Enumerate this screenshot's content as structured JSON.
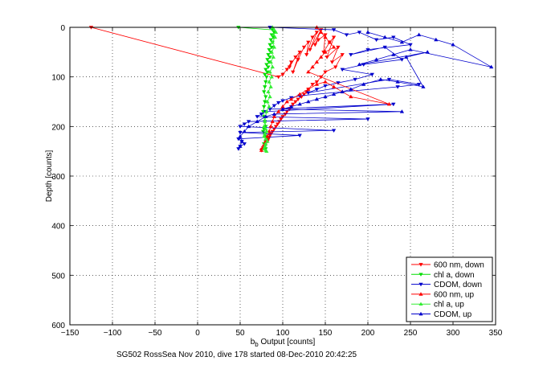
{
  "chart_data": {
    "type": "scatter",
    "title": "",
    "xlabel_base": "b",
    "xlabel_sub": "b",
    "xlabel_rest": " Output [counts]",
    "ylabel": "Depth [counts]",
    "caption": "SG502 RossSea Nov 2010, dive 178 started 08-Dec-2010 20:42:25",
    "xlim": [
      -150,
      350
    ],
    "ylim": [
      600,
      0
    ],
    "grid": true,
    "legend_position": "bottom-right",
    "x_ticks": [
      -150,
      -100,
      -50,
      0,
      50,
      100,
      150,
      200,
      250,
      300,
      350
    ],
    "x_tick_labels": [
      "−150",
      "−100",
      "−50",
      "0",
      "50",
      "100",
      "150",
      "200",
      "250",
      "300",
      "350"
    ],
    "y_ticks": [
      0,
      100,
      200,
      300,
      400,
      500,
      600
    ],
    "y_tick_labels": [
      "0",
      "100",
      "200",
      "300",
      "400",
      "500",
      "600"
    ],
    "series": [
      {
        "name": "600 nm, down",
        "color": "#ff0000",
        "marker": "triangle-down",
        "x": [
          -125,
          95,
          100,
          105,
          110,
          108,
          115,
          120,
          112,
          118,
          125,
          130,
          128,
          135,
          140,
          132,
          145,
          138,
          142,
          150,
          148,
          155,
          160,
          152,
          165,
          158,
          170,
          162,
          150,
          145,
          140,
          135,
          130,
          128,
          125,
          122,
          118,
          115,
          112,
          110,
          108,
          105,
          103,
          100,
          98,
          96,
          94,
          92,
          90,
          88,
          86,
          85,
          84,
          83,
          82,
          80,
          79,
          78,
          77,
          76,
          75
        ],
        "y": [
          0,
          100,
          95,
          85,
          70,
          80,
          60,
          50,
          90,
          65,
          40,
          30,
          55,
          20,
          10,
          45,
          5,
          35,
          25,
          15,
          50,
          30,
          20,
          60,
          40,
          70,
          55,
          80,
          90,
          100,
          110,
          115,
          125,
          130,
          135,
          140,
          145,
          150,
          155,
          160,
          165,
          170,
          175,
          180,
          185,
          190,
          195,
          200,
          205,
          210,
          215,
          218,
          222,
          226,
          230,
          233,
          236,
          240,
          243,
          246,
          248
        ]
      },
      {
        "name": "chl a, down",
        "color": "#00dd00",
        "marker": "triangle-down",
        "x": [
          48,
          88,
          90,
          87,
          89,
          86,
          88,
          85,
          87,
          84,
          86,
          83,
          85,
          82,
          84,
          81,
          83,
          80,
          82,
          79,
          81,
          80,
          79,
          78,
          80,
          79,
          78,
          77,
          78,
          79,
          80,
          78,
          77,
          79,
          80,
          81,
          80,
          78,
          79,
          80
        ],
        "y": [
          0,
          5,
          10,
          15,
          20,
          25,
          30,
          35,
          40,
          45,
          50,
          55,
          60,
          65,
          70,
          75,
          80,
          85,
          90,
          95,
          100,
          110,
          120,
          130,
          140,
          150,
          160,
          170,
          180,
          190,
          200,
          205,
          210,
          215,
          220,
          225,
          230,
          235,
          240,
          245
        ]
      },
      {
        "name": "CDOM, down",
        "color": "#0000cc",
        "marker": "triangle-down",
        "x": [
          85,
          160,
          175,
          190,
          210,
          230,
          250,
          200,
          180,
          220,
          240,
          195,
          170,
          205,
          185,
          165,
          150,
          140,
          130,
          225,
          260,
          235,
          120,
          110,
          100,
          95,
          90,
          85,
          230,
          80,
          75,
          70,
          200,
          60,
          55,
          50,
          160,
          50,
          120,
          48,
          52,
          55,
          50,
          48
        ],
        "y": [
          0,
          5,
          15,
          10,
          25,
          20,
          35,
          45,
          55,
          40,
          65,
          75,
          85,
          95,
          105,
          112,
          118,
          125,
          132,
          105,
          115,
          120,
          138,
          142,
          148,
          152,
          158,
          165,
          155,
          170,
          175,
          180,
          185,
          190,
          195,
          200,
          208,
          212,
          218,
          225,
          230,
          235,
          240,
          245
        ]
      },
      {
        "name": "600 nm, up",
        "color": "#ff0000",
        "marker": "triangle-up",
        "x": [
          140,
          145,
          150,
          155,
          160,
          150,
          145,
          140,
          135,
          130,
          225,
          180,
          170,
          160,
          150,
          140,
          130,
          120,
          110,
          105,
          100,
          95,
          90,
          88,
          86,
          84,
          82,
          80,
          78,
          76,
          75
        ],
        "y": [
          0,
          10,
          20,
          30,
          40,
          50,
          60,
          70,
          80,
          90,
          155,
          140,
          130,
          120,
          110,
          115,
          125,
          135,
          145,
          150,
          160,
          170,
          180,
          190,
          200,
          210,
          220,
          230,
          238,
          244,
          248
        ]
      },
      {
        "name": "chl a, up",
        "color": "#33ee33",
        "marker": "triangle-up",
        "x": [
          88,
          90,
          92,
          89,
          91,
          88,
          90,
          87,
          89,
          86,
          88,
          85,
          87,
          84,
          86,
          83,
          85,
          82,
          84,
          81,
          80,
          79,
          78,
          80,
          81,
          79,
          78,
          80,
          82,
          80,
          79,
          78,
          80,
          81
        ],
        "y": [
          0,
          5,
          10,
          15,
          20,
          30,
          40,
          50,
          60,
          70,
          80,
          90,
          100,
          110,
          120,
          130,
          140,
          150,
          160,
          170,
          180,
          190,
          200,
          205,
          210,
          215,
          220,
          225,
          230,
          235,
          240,
          245,
          248,
          250
        ]
      },
      {
        "name": "CDOM, up",
        "color": "#0000cc",
        "marker": "triangle-up",
        "x": [
          200,
          220,
          240,
          260,
          280,
          300,
          345,
          250,
          230,
          210,
          190,
          270,
          245,
          265,
          235,
          215,
          195,
          180,
          170,
          160,
          150,
          140,
          130,
          120,
          110,
          100,
          240,
          90,
          80,
          70,
          60,
          55,
          50,
          52,
          50
        ],
        "y": [
          10,
          20,
          30,
          15,
          25,
          35,
          80,
          45,
          55,
          65,
          75,
          50,
          60,
          120,
          110,
          105,
          115,
          125,
          130,
          135,
          140,
          145,
          150,
          155,
          160,
          165,
          170,
          175,
          180,
          190,
          200,
          210,
          220,
          230,
          240
        ]
      }
    ]
  }
}
